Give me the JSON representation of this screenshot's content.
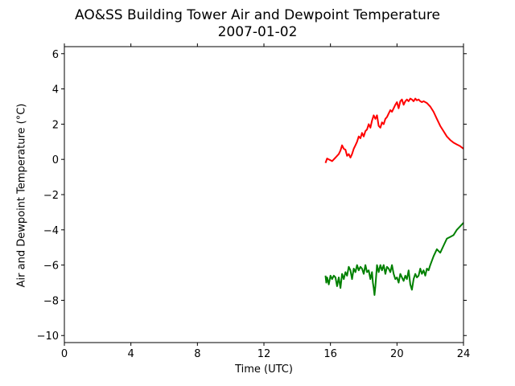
{
  "chart_data": {
    "type": "line",
    "title": "AO&SS Building Tower Air and Dewpoint Temperature",
    "subtitle": "2007-01-02",
    "xlabel": "Time (UTC)",
    "ylabel": "Air and Dewpoint Temperature (°C)",
    "xlim": [
      0,
      24
    ],
    "ylim": [
      -10.4,
      6.4
    ],
    "xticks": [
      "0",
      "4",
      "8",
      "12",
      "16",
      "20",
      "24"
    ],
    "yticks": [
      "-10",
      "-8",
      "-6",
      "-4",
      "-2",
      "0",
      "2",
      "4",
      "6"
    ],
    "grid": false,
    "series": [
      {
        "color": "#ff0000",
        "x": [
          15.7,
          15.8,
          15.9,
          16.0,
          16.1,
          16.2,
          16.3,
          16.4,
          16.5,
          16.6,
          16.7,
          16.8,
          16.9,
          17.0,
          17.1,
          17.2,
          17.3,
          17.4,
          17.5,
          17.6,
          17.7,
          17.8,
          17.9,
          18.0,
          18.1,
          18.2,
          18.3,
          18.4,
          18.5,
          18.6,
          18.7,
          18.8,
          18.9,
          19.0,
          19.1,
          19.2,
          19.3,
          19.4,
          19.5,
          19.6,
          19.7,
          19.8,
          19.9,
          20.0,
          20.1,
          20.2,
          20.3,
          20.4,
          20.5,
          20.6,
          20.7,
          20.8,
          20.9,
          21.0,
          21.1,
          21.2,
          21.3,
          21.4,
          21.5,
          21.6,
          21.7,
          21.8,
          21.9,
          22.0,
          22.2,
          22.4,
          22.6,
          22.8,
          23.0,
          23.2,
          23.4,
          23.6,
          23.8,
          24.0
        ],
        "y": [
          -0.2,
          0.05,
          0.0,
          -0.05,
          -0.1,
          0.0,
          0.1,
          0.2,
          0.3,
          0.5,
          0.8,
          0.6,
          0.55,
          0.2,
          0.3,
          0.1,
          0.3,
          0.6,
          0.8,
          1.0,
          1.3,
          1.2,
          1.5,
          1.3,
          1.6,
          1.7,
          2.0,
          1.8,
          2.2,
          2.5,
          2.3,
          2.5,
          1.9,
          1.8,
          2.1,
          2.0,
          2.3,
          2.4,
          2.6,
          2.8,
          2.7,
          2.9,
          3.1,
          3.25,
          2.9,
          3.3,
          3.4,
          3.1,
          3.3,
          3.4,
          3.3,
          3.45,
          3.4,
          3.3,
          3.45,
          3.35,
          3.4,
          3.3,
          3.25,
          3.3,
          3.25,
          3.2,
          3.1,
          3.0,
          2.7,
          2.3,
          1.9,
          1.6,
          1.3,
          1.1,
          0.95,
          0.85,
          0.75,
          0.6
        ]
      },
      {
        "color": "#008000",
        "x": [
          15.7,
          15.75,
          15.8,
          15.85,
          15.9,
          16.0,
          16.1,
          16.2,
          16.3,
          16.4,
          16.5,
          16.6,
          16.7,
          16.8,
          16.9,
          17.0,
          17.1,
          17.2,
          17.3,
          17.4,
          17.5,
          17.6,
          17.7,
          17.8,
          17.9,
          18.0,
          18.1,
          18.2,
          18.3,
          18.4,
          18.5,
          18.55,
          18.6,
          18.65,
          18.7,
          18.8,
          18.9,
          19.0,
          19.1,
          19.2,
          19.3,
          19.4,
          19.5,
          19.6,
          19.7,
          19.8,
          19.9,
          20.0,
          20.1,
          20.2,
          20.3,
          20.4,
          20.5,
          20.6,
          20.7,
          20.8,
          20.9,
          21.0,
          21.1,
          21.2,
          21.3,
          21.4,
          21.5,
          21.6,
          21.7,
          21.8,
          21.9,
          22.0,
          22.2,
          22.4,
          22.6,
          22.8,
          23.0,
          23.2,
          23.4,
          23.6,
          23.8,
          24.0
        ],
        "y": [
          -6.6,
          -7.0,
          -6.7,
          -6.9,
          -7.1,
          -6.6,
          -6.8,
          -6.6,
          -6.7,
          -7.2,
          -6.7,
          -7.3,
          -6.5,
          -6.8,
          -6.4,
          -6.6,
          -6.1,
          -6.3,
          -6.8,
          -6.2,
          -6.4,
          -6.0,
          -6.3,
          -6.1,
          -6.2,
          -6.5,
          -6.0,
          -6.4,
          -6.3,
          -6.8,
          -6.4,
          -7.0,
          -7.3,
          -7.7,
          -7.2,
          -6.0,
          -6.4,
          -6.0,
          -6.3,
          -6.0,
          -6.5,
          -6.1,
          -6.2,
          -6.4,
          -6.0,
          -6.5,
          -6.8,
          -6.7,
          -7.0,
          -6.5,
          -6.7,
          -6.9,
          -6.6,
          -6.8,
          -6.3,
          -7.1,
          -7.4,
          -6.8,
          -6.5,
          -6.7,
          -6.6,
          -6.2,
          -6.5,
          -6.3,
          -6.6,
          -6.2,
          -6.3,
          -6.0,
          -5.5,
          -5.1,
          -5.3,
          -4.9,
          -4.5,
          -4.4,
          -4.3,
          -4.0,
          -3.8,
          -3.6
        ]
      }
    ]
  }
}
